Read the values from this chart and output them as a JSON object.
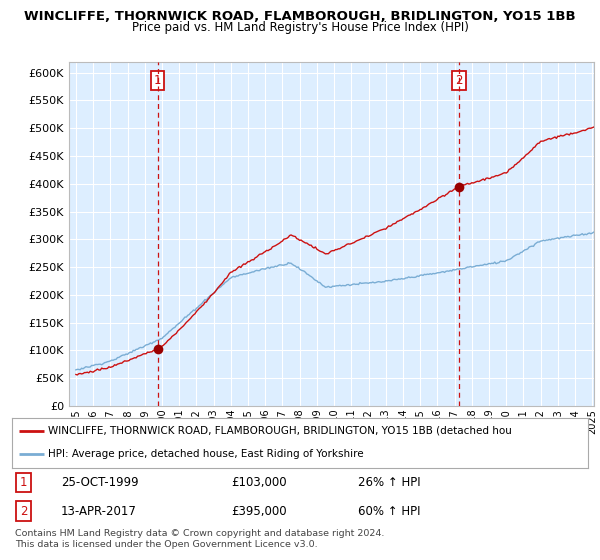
{
  "title": "WINCLIFFE, THORNWICK ROAD, FLAMBOROUGH, BRIDLINGTON, YO15 1BB",
  "subtitle": "Price paid vs. HM Land Registry's House Price Index (HPI)",
  "sale1_price": 103000,
  "sale1_label": "25-OCT-1999",
  "sale1_hpi_pct": "26% ↑ HPI",
  "sale2_price": 395000,
  "sale2_label": "13-APR-2017",
  "sale2_hpi_pct": "60% ↑ HPI",
  "legend_line1": "WINCLIFFE, THORNWICK ROAD, FLAMBOROUGH, BRIDLINGTON, YO15 1BB (detached hou",
  "legend_line2": "HPI: Average price, detached house, East Riding of Yorkshire",
  "footer": "Contains HM Land Registry data © Crown copyright and database right 2024.\nThis data is licensed under the Open Government Licence v3.0.",
  "hpi_color": "#7aadd4",
  "price_color": "#cc1111",
  "marker_color": "#990000",
  "vline_color": "#cc1111",
  "background_color": "#ffffff",
  "plot_bg_color": "#ddeeff",
  "grid_color": "#ffffff",
  "ylim_min": 0,
  "ylim_max": 620000,
  "ytick_step": 50000,
  "x_start_year": 1995,
  "x_end_year": 2025,
  "sale1_t": 1999.75,
  "sale2_t": 2017.25
}
